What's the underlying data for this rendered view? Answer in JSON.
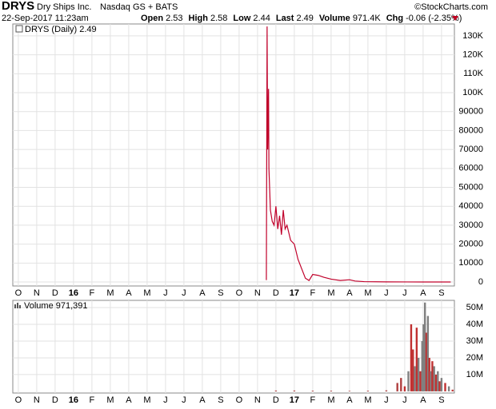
{
  "header": {
    "symbol": "DRYS",
    "company": "Dry Ships Inc.",
    "exchange": "Nasdaq GS + BATS",
    "credit": "©StockCharts.com",
    "date": "22-Sep-2017 11:23am",
    "quote": [
      {
        "label": "Open",
        "value": "2.53"
      },
      {
        "label": "High",
        "value": "2.58"
      },
      {
        "label": "Low",
        "value": "2.44"
      },
      {
        "label": "Last",
        "value": "2.49"
      },
      {
        "label": "Volume",
        "value": "971.4K"
      },
      {
        "label": "Chg",
        "value": "-0.06 (-2.35%)"
      }
    ]
  },
  "chart_data": [
    {
      "type": "line",
      "series": [
        {
          "name": "DRYS (Daily) 2.49",
          "color": "#c0002a",
          "x": [
            13.48,
            13.5,
            13.52,
            13.55,
            13.6,
            13.62,
            13.7,
            13.8,
            13.9,
            14.0,
            14.1,
            14.2,
            14.3,
            14.4,
            14.5,
            14.6,
            14.8,
            15.0,
            15.2,
            15.4,
            15.6,
            15.8,
            16.0,
            16.3,
            16.6,
            17.0,
            17.5,
            18.0,
            18.3,
            18.8,
            20.0,
            22.0,
            23.5
          ],
          "values": [
            1000,
            68000,
            135000,
            70000,
            102000,
            60000,
            38000,
            32000,
            30000,
            40000,
            28000,
            35000,
            25000,
            38000,
            28000,
            30000,
            22000,
            20000,
            12000,
            7000,
            2000,
            800,
            4000,
            3500,
            2500,
            1500,
            800,
            1200,
            500,
            200,
            60,
            10,
            2.49
          ]
        }
      ],
      "xlim": [
        -0.3,
        23.7
      ],
      "xticks": [
        {
          "value": 0,
          "label": "O"
        },
        {
          "value": 1,
          "label": "N"
        },
        {
          "value": 2,
          "label": "D"
        },
        {
          "value": 3,
          "label": "16"
        },
        {
          "value": 4,
          "label": "F"
        },
        {
          "value": 5,
          "label": "M"
        },
        {
          "value": 6,
          "label": "A"
        },
        {
          "value": 7,
          "label": "M"
        },
        {
          "value": 8,
          "label": "J"
        },
        {
          "value": 9,
          "label": "J"
        },
        {
          "value": 10,
          "label": "A"
        },
        {
          "value": 11,
          "label": "S"
        },
        {
          "value": 12,
          "label": "O"
        },
        {
          "value": 13,
          "label": "N"
        },
        {
          "value": 14,
          "label": "D"
        },
        {
          "value": 15,
          "label": "17"
        },
        {
          "value": 16,
          "label": "F"
        },
        {
          "value": 17,
          "label": "M"
        },
        {
          "value": 18,
          "label": "A"
        },
        {
          "value": 19,
          "label": "M"
        },
        {
          "value": 20,
          "label": "J"
        },
        {
          "value": 21,
          "label": "J"
        },
        {
          "value": 22,
          "label": "A"
        },
        {
          "value": 23,
          "label": "S"
        }
      ],
      "ylim": [
        -2100,
        136300
      ],
      "yticks": [
        0,
        10000,
        20000,
        30000,
        40000,
        50000,
        60000,
        70000,
        80000,
        90000,
        {
          "value": 100000,
          "label": "100K"
        },
        {
          "value": 110000,
          "label": "110K"
        },
        {
          "value": 120000,
          "label": "120K"
        },
        {
          "value": 130000,
          "label": "130K"
        }
      ],
      "grid": true
    },
    {
      "type": "bar",
      "series": [
        {
          "name": "Volume 971,391",
          "colors": [
            "#b04040",
            "#b04040",
            "#b04040",
            "#b04040",
            "#b04040",
            "#b04040",
            "#b04040",
            "#b04040",
            "#b04040",
            "#c03030",
            "#808080",
            "#c03030",
            "#c03030",
            "#808080",
            "#c03030",
            "#808080",
            "#c03030",
            "#808080",
            "#808080",
            "#808080",
            "#c03030",
            "#808080",
            "#c03030",
            "#808080",
            "#c03030",
            "#808080",
            "#c03030",
            "#808080",
            "#c03030",
            "#808080",
            "#c03030",
            "#808080",
            "#c03030"
          ],
          "x": [
            14.0,
            15.0,
            16.0,
            17.0,
            18.0,
            19.0,
            20.0,
            20.6,
            20.8,
            21.0,
            21.2,
            21.35,
            21.45,
            21.55,
            21.65,
            21.75,
            21.85,
            21.95,
            22.02,
            22.1,
            22.18,
            22.26,
            22.34,
            22.42,
            22.5,
            22.6,
            22.7,
            22.8,
            22.9,
            23.0,
            23.2,
            23.4,
            23.6
          ],
          "values": [
            500000,
            500000,
            400000,
            400000,
            300000,
            400000,
            600000,
            5000000,
            8000000,
            3000000,
            12000000,
            40000000,
            25000000,
            15000000,
            38000000,
            20000000,
            12000000,
            30000000,
            40000000,
            53000000,
            35000000,
            45000000,
            20000000,
            12000000,
            18000000,
            15000000,
            10000000,
            12000000,
            6000000,
            8000000,
            5000000,
            3000000,
            1000000
          ]
        }
      ],
      "xlim": [
        -0.3,
        23.7
      ],
      "xticks": [
        {
          "value": 0,
          "label": "O"
        },
        {
          "value": 1,
          "label": "N"
        },
        {
          "value": 2,
          "label": "D"
        },
        {
          "value": 3,
          "label": "16"
        },
        {
          "value": 4,
          "label": "F"
        },
        {
          "value": 5,
          "label": "M"
        },
        {
          "value": 6,
          "label": "A"
        },
        {
          "value": 7,
          "label": "M"
        },
        {
          "value": 8,
          "label": "J"
        },
        {
          "value": 9,
          "label": "J"
        },
        {
          "value": 10,
          "label": "A"
        },
        {
          "value": 11,
          "label": "S"
        },
        {
          "value": 12,
          "label": "O"
        },
        {
          "value": 13,
          "label": "N"
        },
        {
          "value": 14,
          "label": "D"
        },
        {
          "value": 15,
          "label": "17"
        },
        {
          "value": 16,
          "label": "F"
        },
        {
          "value": 17,
          "label": "M"
        },
        {
          "value": 18,
          "label": "A"
        },
        {
          "value": 19,
          "label": "M"
        },
        {
          "value": 20,
          "label": "J"
        },
        {
          "value": 21,
          "label": "J"
        },
        {
          "value": 22,
          "label": "A"
        },
        {
          "value": 23,
          "label": "S"
        }
      ],
      "ylim": [
        -1000000,
        54300000
      ],
      "yticks": [
        {
          "value": 10000000,
          "label": "10M"
        },
        {
          "value": 20000000,
          "label": "20M"
        },
        {
          "value": 30000000,
          "label": "30M"
        },
        {
          "value": 40000000,
          "label": "40M"
        },
        {
          "value": 50000000,
          "label": "50M"
        }
      ],
      "grid": true
    }
  ]
}
